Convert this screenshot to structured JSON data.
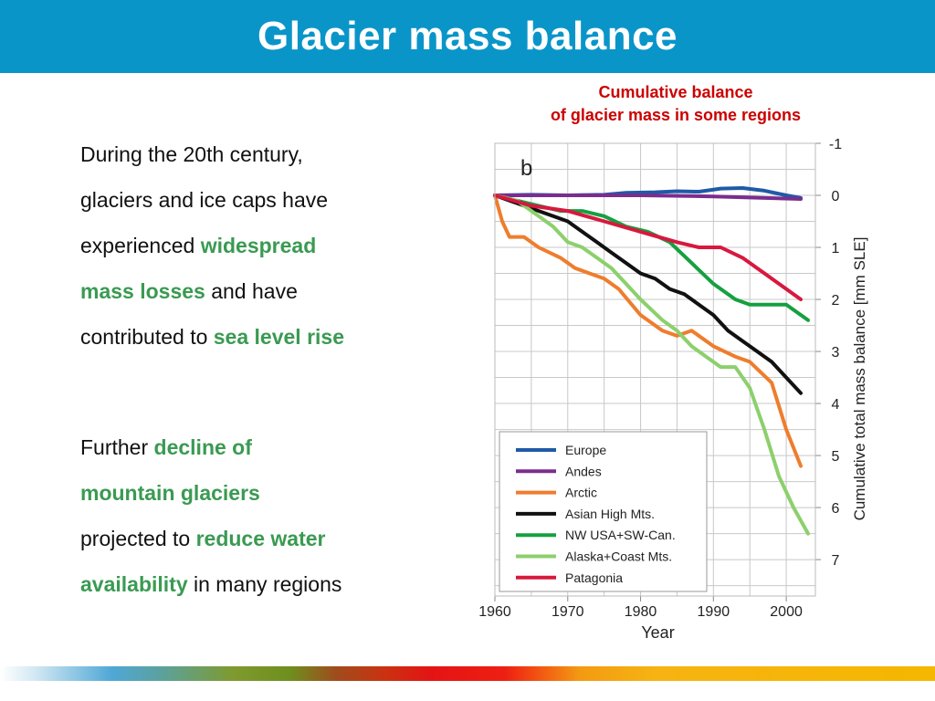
{
  "header": {
    "title": "Glacier mass balance"
  },
  "block1": {
    "lines": [
      [
        {
          "t": "During the 20th century,",
          "h": false
        }
      ],
      [
        {
          "t": "glaciers and ice caps have",
          "h": false
        }
      ],
      [
        {
          "t": "experienced ",
          "h": false
        },
        {
          "t": "widespread",
          "h": true
        }
      ],
      [
        {
          "t": "mass losses",
          "h": true
        },
        {
          "t": " and have",
          "h": false
        }
      ],
      [
        {
          "t": "contributed to ",
          "h": false
        },
        {
          "t": "sea level rise",
          "h": true
        }
      ]
    ]
  },
  "block2": {
    "lines": [
      [
        {
          "t": "Further ",
          "h": false
        },
        {
          "t": "decline of",
          "h": true
        }
      ],
      [
        {
          "t": "mountain glaciers",
          "h": true
        }
      ],
      [
        {
          "t": "projected to ",
          "h": false
        },
        {
          "t": "reduce water",
          "h": true
        }
      ],
      [
        {
          "t": "availability",
          "h": true
        },
        {
          "t": " in many regions",
          "h": false
        }
      ]
    ]
  },
  "chart_title": {
    "line1": "Cumulative balance",
    "line2": "of glacier mass in some regions"
  },
  "chart_data": {
    "type": "line",
    "panel_label": "b",
    "xlabel": "Year",
    "ylabel": "Cumulative total mass balance [mm SLE]",
    "xlim": [
      1960,
      2004
    ],
    "ylim": [
      -1,
      7.7
    ],
    "y_inverted": true,
    "y_axis_side": "right",
    "x_ticks": [
      1960,
      1970,
      1980,
      1990,
      2000
    ],
    "y_ticks": [
      -1,
      0,
      1,
      2,
      3,
      4,
      5,
      6,
      7
    ],
    "grid": true,
    "legend_position": "bottom-left",
    "series": [
      {
        "name": "Europe",
        "color": "#1f5aa6",
        "x": [
          1960,
          1965,
          1970,
          1975,
          1978,
          1982,
          1985,
          1988,
          1991,
          1994,
          1997,
          2000,
          2002
        ],
        "y": [
          0,
          -0.01,
          0,
          -0.01,
          -0.05,
          -0.06,
          -0.08,
          -0.07,
          -0.13,
          -0.14,
          -0.09,
          0,
          0.05
        ]
      },
      {
        "name": "Andes",
        "color": "#7b2d8e",
        "x": [
          1960,
          1970,
          1980,
          1990,
          2002
        ],
        "y": [
          0,
          0,
          0,
          0.02,
          0.07
        ]
      },
      {
        "name": "Arctic",
        "color": "#ee7d2e",
        "x": [
          1960,
          1961,
          1962,
          1964,
          1966,
          1969,
          1971,
          1973,
          1975,
          1977,
          1980,
          1983,
          1985,
          1987,
          1990,
          1993,
          1995,
          1998,
          2000,
          2002
        ],
        "y": [
          0,
          0.5,
          0.8,
          0.8,
          1.0,
          1.2,
          1.4,
          1.5,
          1.6,
          1.8,
          2.3,
          2.6,
          2.7,
          2.6,
          2.9,
          3.1,
          3.2,
          3.6,
          4.5,
          5.2
        ]
      },
      {
        "name": "Asian High Mts.",
        "color": "#111111",
        "x": [
          1960,
          1962,
          1964,
          1966,
          1968,
          1970,
          1972,
          1974,
          1976,
          1978,
          1980,
          1982,
          1984,
          1986,
          1988,
          1990,
          1992,
          1994,
          1996,
          1998,
          2000,
          2002
        ],
        "y": [
          0,
          0.1,
          0.2,
          0.3,
          0.4,
          0.5,
          0.7,
          0.9,
          1.1,
          1.3,
          1.5,
          1.6,
          1.8,
          1.9,
          2.1,
          2.3,
          2.6,
          2.8,
          3.0,
          3.2,
          3.5,
          3.8
        ]
      },
      {
        "name": "NW USA+SW-Can.",
        "color": "#16a040",
        "x": [
          1960,
          1963,
          1966,
          1969,
          1972,
          1975,
          1978,
          1981,
          1984,
          1987,
          1990,
          1993,
          1995,
          1997,
          2000,
          2003
        ],
        "y": [
          0,
          0.1,
          0.2,
          0.3,
          0.3,
          0.4,
          0.6,
          0.7,
          0.9,
          1.3,
          1.7,
          2.0,
          2.1,
          2.1,
          2.1,
          2.4
        ]
      },
      {
        "name": "Alaska+Coast Mts.",
        "color": "#8cd06c",
        "x": [
          1960,
          1963,
          1966,
          1968,
          1970,
          1972,
          1974,
          1976,
          1978,
          1980,
          1983,
          1985,
          1987,
          1989,
          1991,
          1993,
          1995,
          1997,
          1999,
          2001,
          2003
        ],
        "y": [
          0,
          0.1,
          0.4,
          0.6,
          0.9,
          1.0,
          1.2,
          1.4,
          1.7,
          2.0,
          2.4,
          2.6,
          2.9,
          3.1,
          3.3,
          3.3,
          3.7,
          4.5,
          5.4,
          6.0,
          6.5
        ]
      },
      {
        "name": "Patagonia",
        "color": "#d8183e",
        "x": [
          1960,
          1965,
          1970,
          1975,
          1980,
          1985,
          1988,
          1991,
          1994,
          1997,
          2000,
          2002
        ],
        "y": [
          0,
          0.2,
          0.3,
          0.5,
          0.7,
          0.9,
          1.0,
          1.0,
          1.2,
          1.5,
          1.8,
          2.0
        ]
      }
    ]
  }
}
